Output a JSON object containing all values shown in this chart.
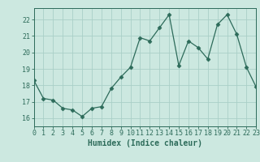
{
  "x": [
    0,
    1,
    2,
    3,
    4,
    5,
    6,
    7,
    8,
    9,
    10,
    11,
    12,
    13,
    14,
    15,
    16,
    17,
    18,
    19,
    20,
    21,
    22,
    23
  ],
  "y": [
    18.3,
    17.2,
    17.1,
    16.6,
    16.5,
    16.1,
    16.6,
    16.7,
    17.8,
    18.5,
    19.1,
    20.9,
    20.7,
    21.5,
    22.3,
    19.2,
    20.7,
    20.3,
    19.6,
    21.7,
    22.3,
    21.1,
    19.1,
    17.9
  ],
  "xlabel": "Humidex (Indice chaleur)",
  "line_color": "#2d6b5a",
  "marker": "D",
  "marker_size": 2.5,
  "bg_color": "#cce8e0",
  "grid_color": "#aacfc7",
  "xlim": [
    0,
    23
  ],
  "ylim": [
    15.5,
    22.7
  ],
  "yticks": [
    16,
    17,
    18,
    19,
    20,
    21,
    22
  ],
  "xticks": [
    0,
    1,
    2,
    3,
    4,
    5,
    6,
    7,
    8,
    9,
    10,
    11,
    12,
    13,
    14,
    15,
    16,
    17,
    18,
    19,
    20,
    21,
    22,
    23
  ],
  "xlabel_fontsize": 7,
  "tick_fontsize": 6,
  "line_width": 0.9
}
